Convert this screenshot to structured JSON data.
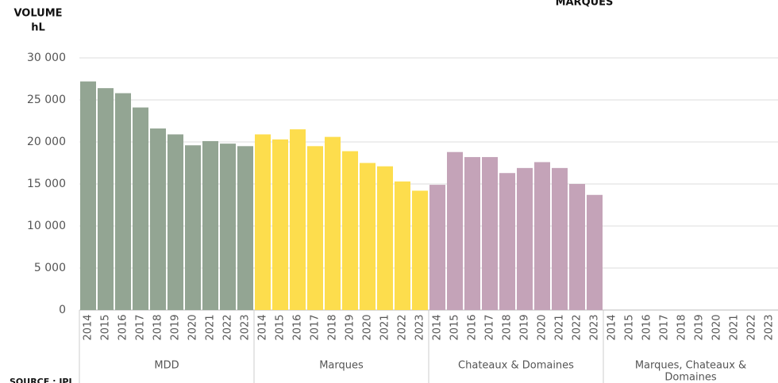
{
  "chart_data": {
    "type": "bar",
    "title": "MARQUES",
    "y_label_line1": "VOLUME",
    "y_label_line2": "hL",
    "source": "SOURCE : IPL",
    "ylim": [
      0,
      30000
    ],
    "yticks": [
      0,
      {
        "value": 5000,
        "label": "5 000"
      },
      {
        "value": 10000,
        "label": "10 000"
      },
      {
        "value": 15000,
        "label": "15 000"
      },
      {
        "value": 20000,
        "label": "20 000"
      },
      {
        "value": 25000,
        "label": "25 000"
      },
      {
        "value": 30000,
        "label": "30 000"
      }
    ],
    "grid": true,
    "groups": [
      {
        "name": "MDD",
        "color": "#93a593",
        "categories": [
          "2014",
          "2015",
          "2016",
          "2017",
          "2018",
          "2019",
          "2020",
          "2021",
          "2022",
          "2023"
        ],
        "values": [
          27200,
          26400,
          25800,
          24100,
          21600,
          20900,
          19600,
          20100,
          19800,
          19500
        ]
      },
      {
        "name": "Marques",
        "color": "#fddd4d",
        "categories": [
          "2014",
          "2015",
          "2016",
          "2017",
          "2018",
          "2019",
          "2020",
          "2021",
          "2022",
          "2023"
        ],
        "values": [
          20900,
          20300,
          21500,
          19500,
          20600,
          18900,
          17500,
          17100,
          15300,
          14200
        ]
      },
      {
        "name": "Chateaux & Domaines",
        "color": "#c4a3b8",
        "categories": [
          "2014",
          "2015",
          "2016",
          "2017",
          "2018",
          "2019",
          "2020",
          "2021",
          "2022",
          "2023"
        ],
        "values": [
          14900,
          18800,
          18200,
          18200,
          16300,
          16900,
          17600,
          16900,
          15000,
          13700
        ]
      },
      {
        "name_line1": "Marques, Chateaux &",
        "name_line2": "Domaines",
        "color": "#b0b0b0",
        "categories": [
          "2014",
          "2015",
          "2016",
          "2017",
          "2018",
          "2019",
          "2020",
          "2021",
          "2022",
          "2023"
        ],
        "values": [
          null,
          null,
          null,
          null,
          null,
          null,
          null,
          null,
          null,
          null
        ]
      }
    ]
  }
}
